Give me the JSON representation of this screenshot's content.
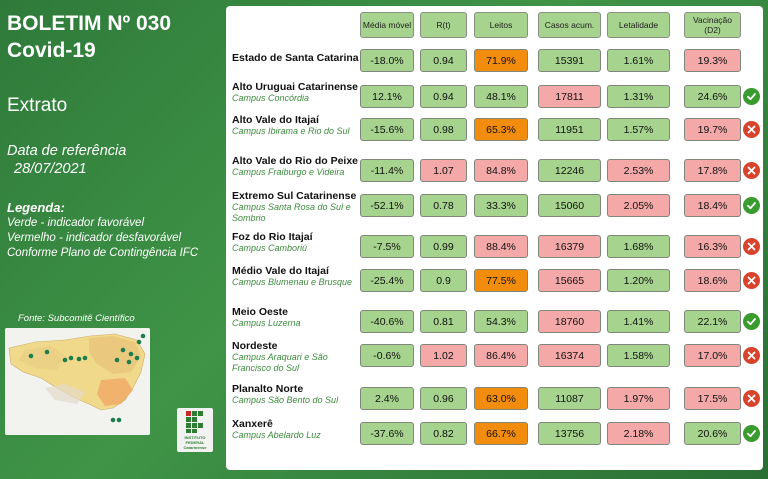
{
  "header": {
    "title_line1": "BOLETIM Nº 030",
    "title_line2": "Covid-19",
    "extrato": "Extrato",
    "ref_label": "Data de referência",
    "ref_date": "28/07/2021"
  },
  "legend": {
    "title": "Legenda:",
    "line1": "Verde - indicador favorável",
    "line2": "Vermelho - indicador desfavorável",
    "line3": "Conforme Plano de Contingência IFC"
  },
  "source": "Fonte: Subcomitê Científico",
  "logo": {
    "line1": "INSTITUTO",
    "line2": "FEDERAL",
    "line3": "Catarinense"
  },
  "columns": [
    "Média móvel",
    "R(t)",
    "Leitos",
    "Casos acum.",
    "Letalidade",
    "Vacinação (D2)"
  ],
  "rows": [
    {
      "region": "Estado de Santa Catarina",
      "campus": "",
      "values": [
        "-18.0%",
        "0.94",
        "71.9%",
        "15391",
        "1.61%",
        "19.3%"
      ],
      "colors": [
        "g",
        "g",
        "o",
        "g",
        "g",
        "r"
      ],
      "status": ""
    },
    {
      "region": "Alto Uruguai Catarinense",
      "campus": "Campus Concórdia",
      "values": [
        "12.1%",
        "0.94",
        "48.1%",
        "17811",
        "1.31%",
        "24.6%"
      ],
      "colors": [
        "g",
        "g",
        "g",
        "r",
        "g",
        "g"
      ],
      "status": "ok"
    },
    {
      "region": "Alto Vale do Itajaí",
      "campus": "Campus Ibirama e Rio do Sul",
      "values": [
        "-15.6%",
        "0.98",
        "65.3%",
        "11951",
        "1.57%",
        "19.7%"
      ],
      "colors": [
        "g",
        "g",
        "o",
        "g",
        "g",
        "r"
      ],
      "status": "bad"
    },
    {
      "region": "Alto Vale do Rio do Peixe",
      "campus": "Campus Fraiburgo e Videira",
      "values": [
        "-11.4%",
        "1.07",
        "84.8%",
        "12246",
        "2.53%",
        "17.8%"
      ],
      "colors": [
        "g",
        "r",
        "r",
        "g",
        "r",
        "r"
      ],
      "status": "bad"
    },
    {
      "region": "Extremo Sul Catarinense",
      "campus": "Campus Santa Rosa do Sul e Sombrio",
      "values": [
        "-52.1%",
        "0.78",
        "33.3%",
        "15060",
        "2.05%",
        "18.4%"
      ],
      "colors": [
        "g",
        "g",
        "g",
        "g",
        "r",
        "r"
      ],
      "status": "ok"
    },
    {
      "region": "Foz do Rio Itajaí",
      "campus": "Campus Camboriú",
      "values": [
        "-7.5%",
        "0.99",
        "88.4%",
        "16379",
        "1.68%",
        "16.3%"
      ],
      "colors": [
        "g",
        "g",
        "r",
        "r",
        "g",
        "r"
      ],
      "status": "bad"
    },
    {
      "region": "Médio Vale do Itajaí",
      "campus": "Campus Blumenau e Brusque",
      "values": [
        "-25.4%",
        "0.9",
        "77.5%",
        "15665",
        "1.20%",
        "18.6%"
      ],
      "colors": [
        "g",
        "g",
        "o",
        "r",
        "g",
        "r"
      ],
      "status": "bad"
    },
    {
      "region": "Meio Oeste",
      "campus": "Campus Luzerna",
      "values": [
        "-40.6%",
        "0.81",
        "54.3%",
        "18760",
        "1.41%",
        "22.1%"
      ],
      "colors": [
        "g",
        "g",
        "g",
        "r",
        "g",
        "g"
      ],
      "status": "ok"
    },
    {
      "region": "Nordeste",
      "campus": "Campus Araquari e São Francisco do Sul",
      "values": [
        "-0.6%",
        "1.02",
        "86.4%",
        "16374",
        "1.58%",
        "17.0%"
      ],
      "colors": [
        "g",
        "r",
        "r",
        "r",
        "g",
        "r"
      ],
      "status": "bad"
    },
    {
      "region": "Planalto Norte",
      "campus": "Campus São Bento do Sul",
      "values": [
        "2.4%",
        "0.96",
        "63.0%",
        "11087",
        "1.97%",
        "17.5%"
      ],
      "colors": [
        "g",
        "g",
        "o",
        "g",
        "r",
        "r"
      ],
      "status": "bad"
    },
    {
      "region": "Xanxerê",
      "campus": "Campus Abelardo Luz",
      "values": [
        "-37.6%",
        "0.82",
        "66.7%",
        "13756",
        "2.18%",
        "20.6%"
      ],
      "colors": [
        "g",
        "g",
        "o",
        "g",
        "r",
        "g"
      ],
      "status": "ok"
    }
  ]
}
